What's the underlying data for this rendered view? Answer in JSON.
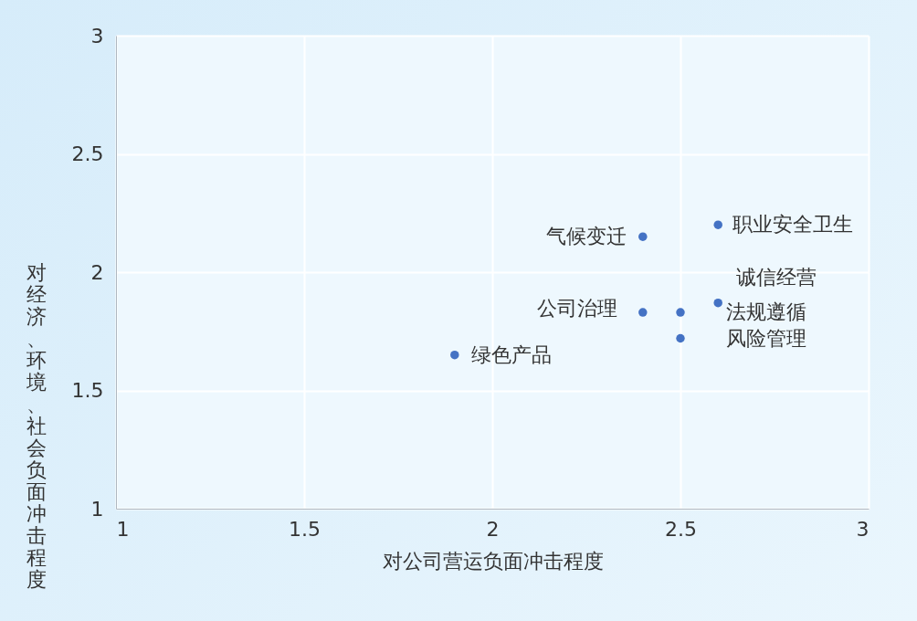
{
  "chart_data": {
    "type": "scatter",
    "xlabel": "对公司营运负面冲击程度",
    "ylabel": "对经济、环境、社会负面冲击程度",
    "x": [
      2.4,
      2.6,
      2.6,
      2.4,
      2.5,
      2.5,
      1.9
    ],
    "values": [
      2.15,
      2.2,
      1.87,
      1.83,
      1.83,
      1.72,
      1.65
    ],
    "color": "#4472c4",
    "marker": "circle",
    "annotations": [
      {
        "text": "气候变迁",
        "x": 2.4,
        "y": 2.15
      },
      {
        "text": "职业安全卫生",
        "x": 2.6,
        "y": 2.2
      },
      {
        "text": "诚信经营",
        "x": 2.6,
        "y": 1.87
      },
      {
        "text": "公司治理",
        "x": 2.4,
        "y": 1.83
      },
      {
        "text": "法规遵循",
        "x": 2.5,
        "y": 1.83
      },
      {
        "text": "风险管理",
        "x": 2.5,
        "y": 1.72
      },
      {
        "text": "绿色产品",
        "x": 1.9,
        "y": 1.65
      }
    ],
    "xlim": [
      1,
      3
    ],
    "xticks": [
      1,
      1.5,
      2,
      2.5,
      3
    ],
    "ylim": [
      1,
      3
    ],
    "yticks": [
      1,
      1.5,
      2,
      2.5,
      3
    ],
    "grid": true
  }
}
